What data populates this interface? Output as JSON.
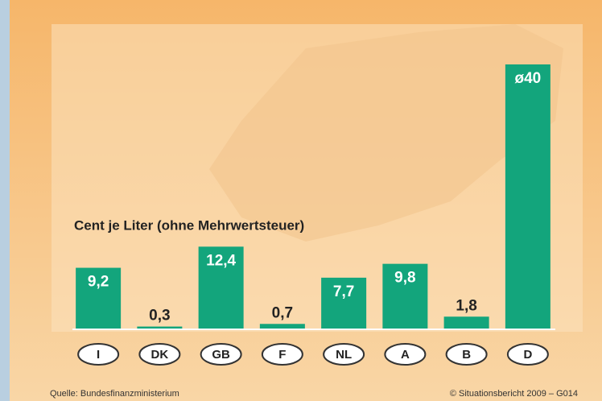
{
  "chart_data": {
    "type": "bar",
    "subtitle": "Cent je Liter (ohne Mehrwertsteuer)",
    "categories": [
      "I",
      "DK",
      "GB",
      "F",
      "NL",
      "A",
      "B",
      "D"
    ],
    "values": [
      9.2,
      0.3,
      12.4,
      0.7,
      7.7,
      9.8,
      1.8,
      40
    ],
    "value_labels": [
      "9,2",
      "0,3",
      "12,4",
      "0,7",
      "7,7",
      "9,8",
      "1,8",
      "ø40"
    ],
    "color": "#13a57c",
    "source": "Quelle: Bundesfinanzministerium",
    "copyright": "© Situationsbericht 2009 – G014"
  }
}
